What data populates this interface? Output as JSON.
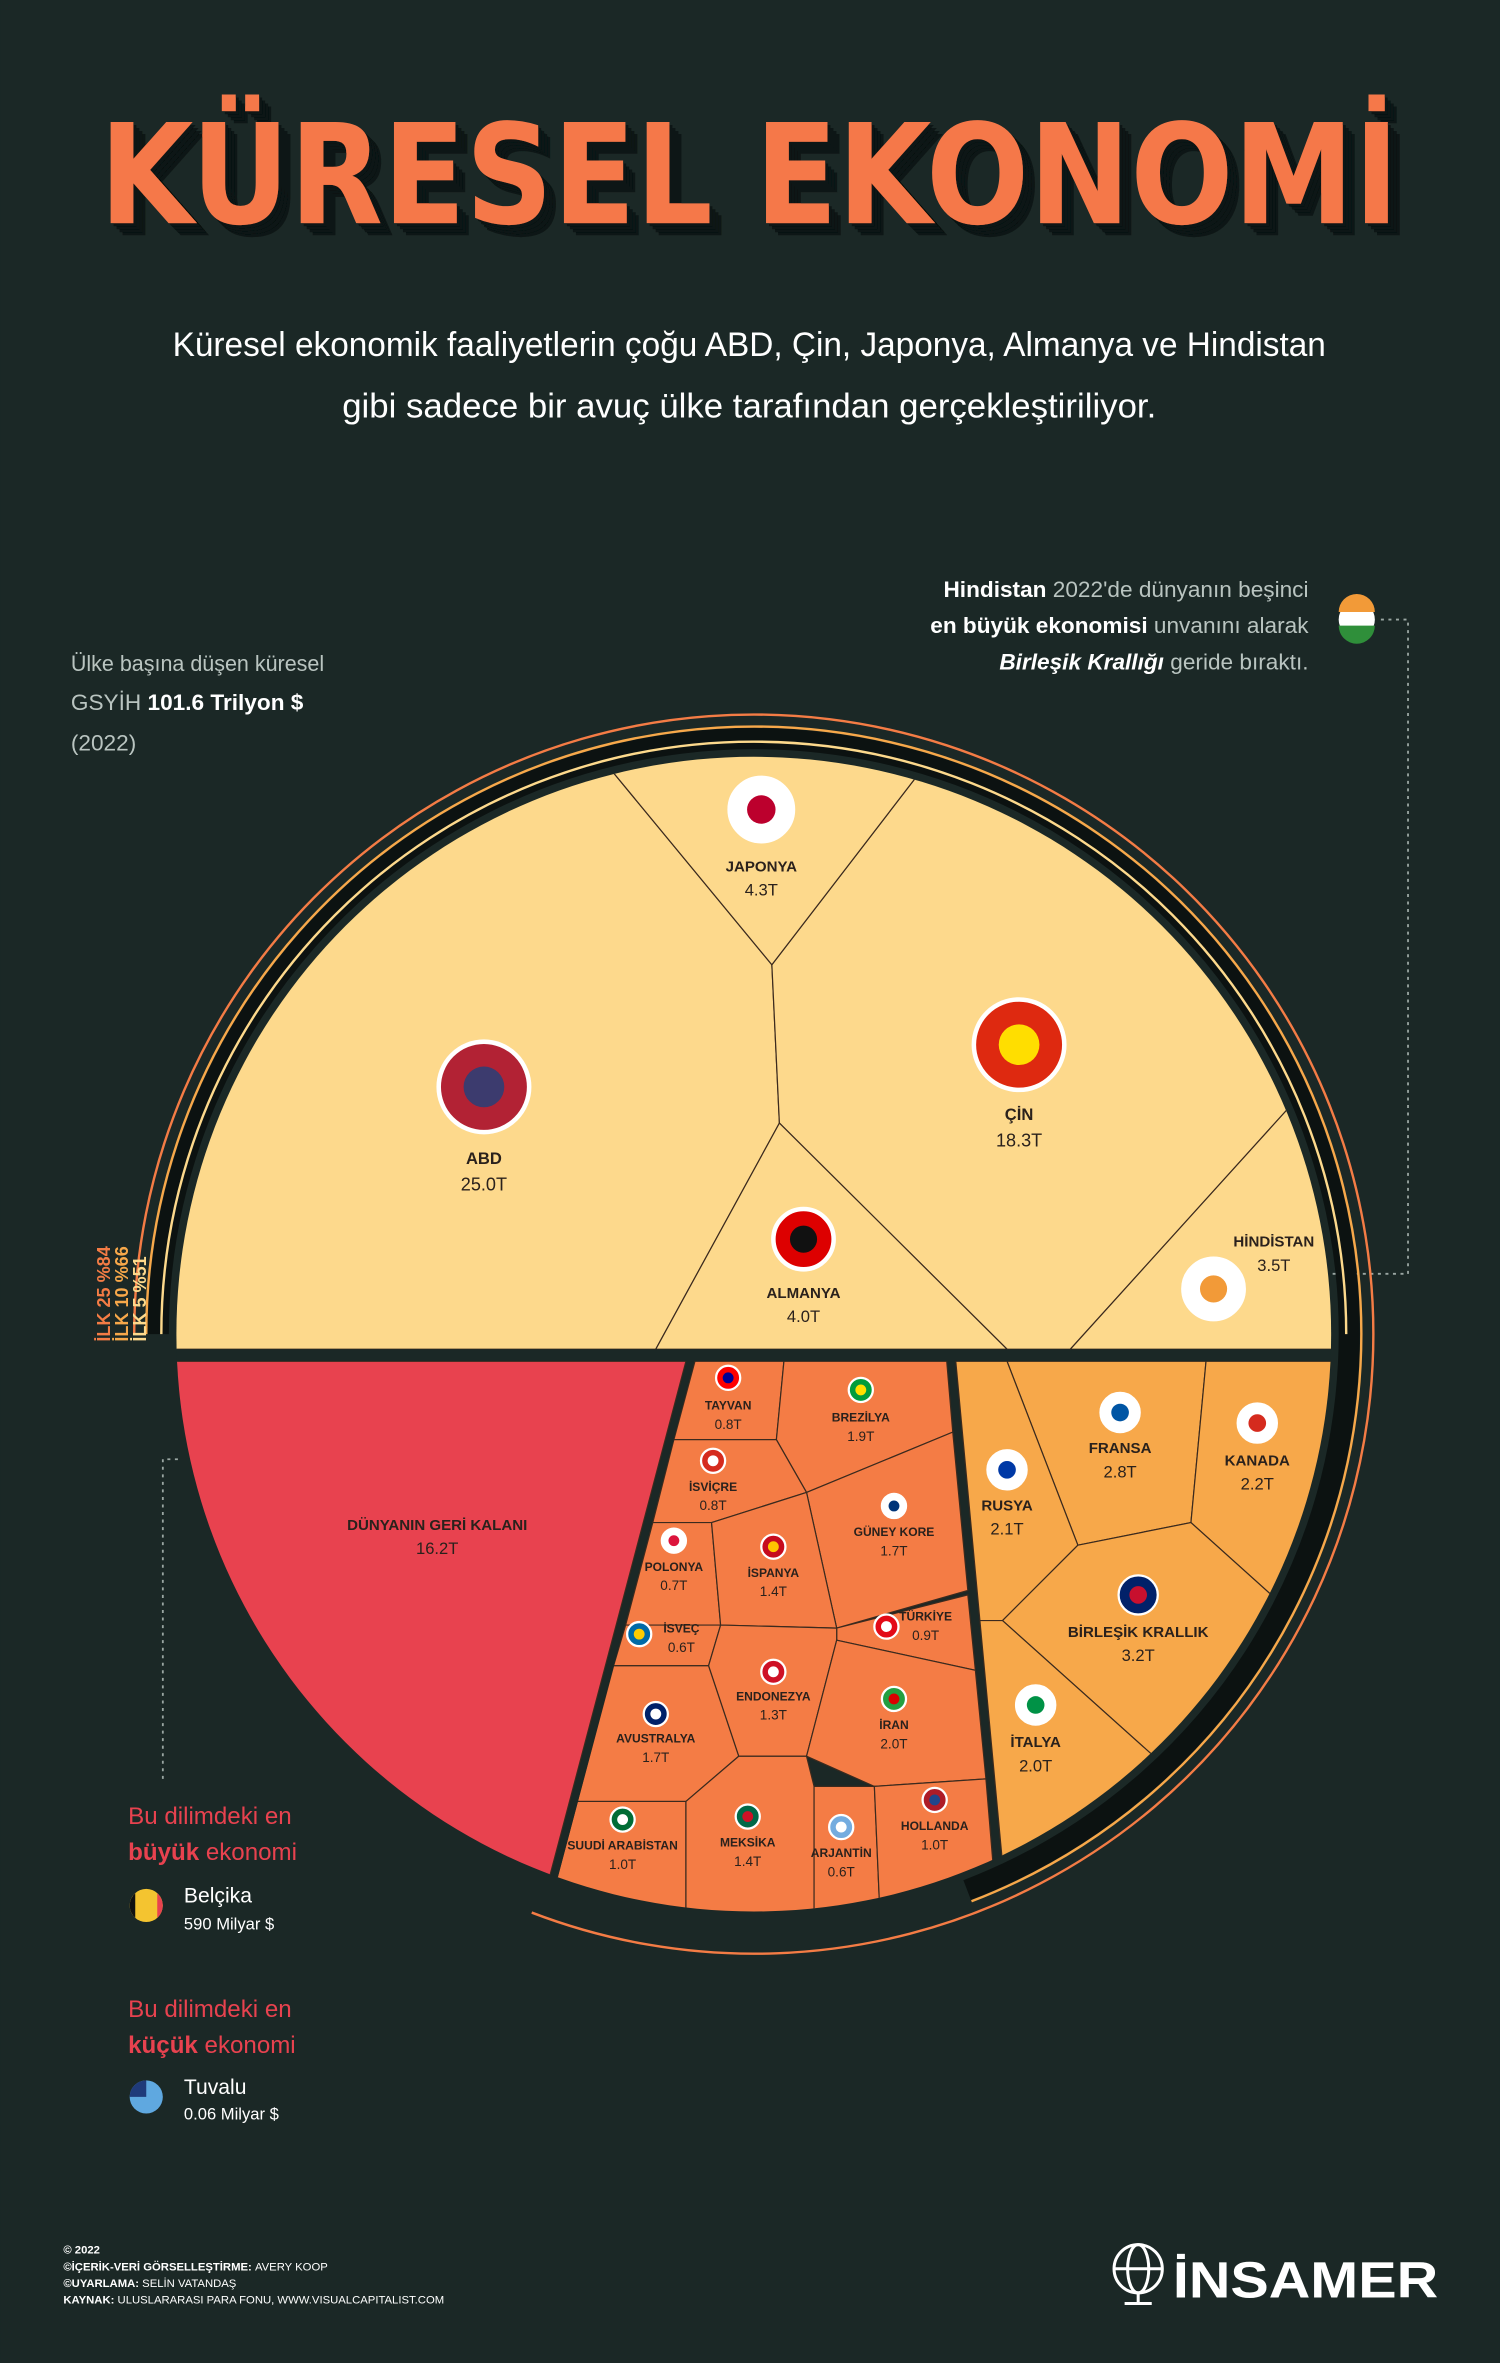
{
  "title": "KÜRESEL EKONOMİ",
  "subtitle": [
    "Küresel ekonomik faaliyetlerin çoğu ABD, Çin, Japonya, Almanya ve Hindistan",
    "gibi sadece bir avuç ülke tarafından gerçekleştiriliyor."
  ],
  "chart_data": {
    "type": "voronoi",
    "categories": [
      "ABD",
      "ÇİN",
      "JAPONYA",
      "ALMANYA",
      "HİNDİSTAN",
      "FRANSA",
      "KANADA",
      "RUSYA",
      "BİRLEŞİK KRALLIK",
      "İTALYA",
      "TAYVAN",
      "BREZİLYA",
      "İSVİÇRE",
      "GÜNEY KORE",
      "POLONYA",
      "İSPANYA",
      "TÜRKİYE",
      "İSVEÇ",
      "ENDONEZYA",
      "AVUSTRALYA",
      "İRAN",
      "SUUDİ ARABİSTAN",
      "MEKSİKA",
      "ARJANTİN",
      "HOLLANDA",
      "DÜNYANIN GERİ KALANI"
    ],
    "values": [
      25.0,
      18.3,
      4.3,
      4.0,
      3.5,
      2.8,
      2.2,
      2.1,
      3.2,
      2.0,
      0.8,
      1.9,
      0.8,
      1.7,
      0.7,
      1.4,
      0.9,
      0.6,
      1.3,
      1.7,
      2.0,
      1.0,
      1.4,
      0.6,
      1.0,
      16.2
    ],
    "value_labels": [
      "25.0T",
      "18.3T",
      "4.3T",
      "4.0T",
      "3.5T",
      "2.8T",
      "2.2T",
      "2.1T",
      "3.2T",
      "2.0T",
      "0.8T",
      "1.9T",
      "0.8T",
      "1.7T",
      "0.7T",
      "1.4T",
      "0.9T",
      "0.6T",
      "1.3T",
      "1.7T",
      "2.0T",
      "1.0T",
      "1.4T",
      "0.6T",
      "1.0T",
      "16.2T"
    ],
    "colors": [
      "#fdd98c",
      "#fdd98c",
      "#fdd98c",
      "#fdd98c",
      "#fdd98c",
      "#f7a84a",
      "#f7a84a",
      "#f7a84a",
      "#f7a84a",
      "#f7a84a",
      "#f47c45",
      "#f47c45",
      "#f47c45",
      "#f47c45",
      "#f47c45",
      "#f47c45",
      "#f47c45",
      "#f47c45",
      "#f47c45",
      "#f47c45",
      "#f47c45",
      "#f47c45",
      "#f47c45",
      "#f47c45",
      "#f47c45",
      "#e8424f"
    ],
    "ring_labels": [
      "İLK 25 %84",
      "İLK 10 %66",
      "İLK 5 %51"
    ]
  },
  "gdp_note": [
    "Ülke başına düşen küresel",
    "GSYİH",
    "101.6 Trilyon $",
    "(2022)"
  ],
  "india_note": [
    "Hindistan",
    "2022'de dünyanın beşinci",
    "en büyük ekonomisi",
    "unvanını alarak",
    "Birleşik Krallığı",
    "geride bıraktı."
  ],
  "largest": {
    "heading": [
      "Bu dilimdeki en",
      "büyük",
      "ekonomi"
    ],
    "country": "Belçika",
    "amount": "590 Milyar $"
  },
  "smallest": {
    "heading": [
      "Bu dilimdeki en",
      "küçük",
      "ekonomi"
    ],
    "country": "Tuvalu",
    "amount": "0.06 Milyar $"
  },
  "footer": {
    "year": "© 2022",
    "credits": [
      [
        "©İÇERİK-VERİ GÖRSELLEŞTİRME:",
        "AVERY KOOP"
      ],
      [
        "©UYARLAMA:",
        "SELİN VATANDAŞ"
      ],
      [
        "KAYNAK:",
        "ULUSLARARASI PARA FONU, WWW.VISUALCAPITALIST.COM"
      ]
    ],
    "logo": "İNSAMER"
  }
}
